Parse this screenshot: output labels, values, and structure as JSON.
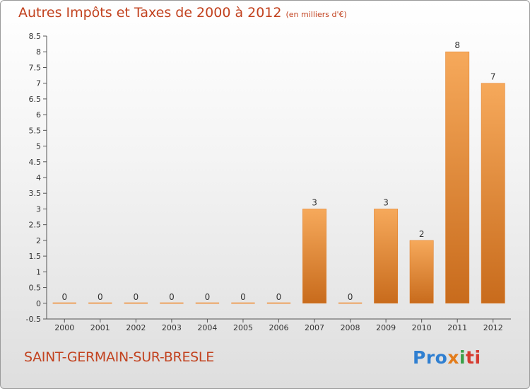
{
  "chart_data": {
    "type": "bar",
    "title": "Autres Impôts et Taxes de 2000 à 2012",
    "subtitle": "(en milliers d'€)",
    "categories": [
      "2000",
      "2001",
      "2002",
      "2003",
      "2004",
      "2005",
      "2006",
      "2007",
      "2008",
      "2009",
      "2010",
      "2011",
      "2012"
    ],
    "values": [
      0,
      0,
      0,
      0,
      0,
      0,
      0,
      3,
      0,
      3,
      2,
      8,
      7
    ],
    "value_labels": [
      "0",
      "0",
      "0",
      "0",
      "0",
      "0",
      "0",
      "3",
      "0",
      "3",
      "2",
      "8",
      "7"
    ],
    "ylim": [
      -0.5,
      8.5
    ],
    "yticks": [
      "-0.5",
      "0",
      "0.5",
      "1",
      "1.5",
      "2",
      "2.5",
      "3",
      "3.5",
      "4",
      "4.5",
      "5",
      "5.5",
      "6",
      "6.5",
      "7",
      "7.5",
      "8",
      "8.5"
    ],
    "grid": false,
    "bar_color": "#f0882a",
    "xlabel": "",
    "ylabel": ""
  },
  "footer": {
    "commune": "SAINT-GERMAIN-SUR-BRESLE",
    "logo_parts": [
      "Pro",
      "x",
      "i",
      "ti"
    ]
  },
  "colors": {
    "title": "#c2421f",
    "bar_light": "#f6a95b",
    "bar_dark": "#c86b1c"
  }
}
